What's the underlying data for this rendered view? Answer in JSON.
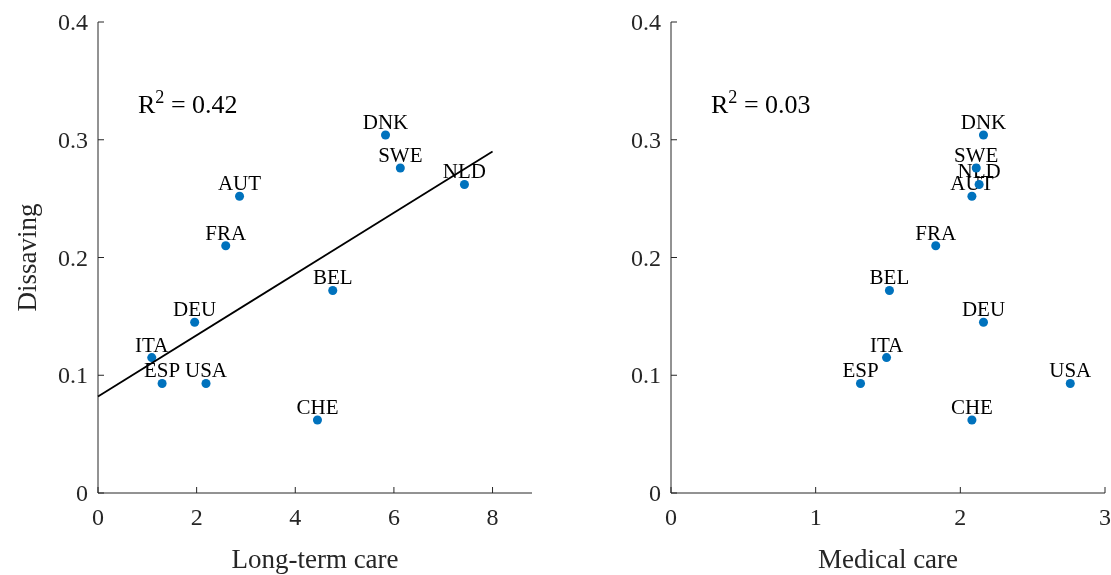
{
  "chart_data": [
    {
      "type": "scatter",
      "xlabel": "Long-term care",
      "ylabel": "Dissaving",
      "xlim": [
        0,
        8.8
      ],
      "xticks": [
        0,
        2,
        4,
        6,
        8
      ],
      "ylim": [
        0,
        0.4
      ],
      "yticks": [
        0,
        0.1,
        0.2,
        0.3,
        0.4
      ],
      "grid": false,
      "marker": "circle",
      "series": [
        {
          "color": "#0072bd",
          "x": [
            5.83,
            6.13,
            7.43,
            2.87,
            2.59,
            4.76,
            1.96,
            1.09,
            1.3,
            2.19,
            4.45
          ],
          "values": [
            0.304,
            0.276,
            0.262,
            0.252,
            0.21,
            0.172,
            0.145,
            0.115,
            0.093,
            0.093,
            0.062
          ]
        },
        {
          "type": "line",
          "marker": "none",
          "color": "#000000",
          "x": [
            0,
            8
          ],
          "values": [
            0.082,
            0.29
          ]
        }
      ],
      "annotations": [
        "R$^{2}$ = 0.42",
        {
          "text": "DNK",
          "x": 5.83,
          "y": 0.304
        },
        {
          "text": "SWE",
          "x": 6.13,
          "y": 0.276
        },
        {
          "text": "NLD",
          "x": 7.43,
          "y": 0.262
        },
        {
          "text": "AUT",
          "x": 2.87,
          "y": 0.252
        },
        {
          "text": "FRA",
          "x": 2.59,
          "y": 0.21
        },
        {
          "text": "BEL",
          "x": 4.76,
          "y": 0.172
        },
        {
          "text": "DEU",
          "x": 1.96,
          "y": 0.145
        },
        {
          "text": "ITA",
          "x": 1.09,
          "y": 0.115
        },
        {
          "text": "ESP",
          "x": 1.3,
          "y": 0.093
        },
        {
          "text": "USA",
          "x": 2.19,
          "y": 0.093
        },
        {
          "text": "CHE",
          "x": 4.45,
          "y": 0.062
        }
      ]
    },
    {
      "type": "scatter",
      "xlabel": "Medical care",
      "xlim": [
        0,
        3
      ],
      "xticks": [
        0,
        1,
        2,
        3
      ],
      "ylim": [
        0,
        0.4
      ],
      "yticks": [
        0,
        0.1,
        0.2,
        0.3,
        0.4
      ],
      "grid": false,
      "marker": "circle",
      "series": [
        {
          "color": "#0072bd",
          "x": [
            2.16,
            2.11,
            2.13,
            2.08,
            1.83,
            1.51,
            2.16,
            1.49,
            1.31,
            2.76,
            2.08
          ],
          "values": [
            0.304,
            0.276,
            0.262,
            0.252,
            0.21,
            0.172,
            0.145,
            0.115,
            0.093,
            0.093,
            0.062
          ]
        }
      ],
      "annotations": [
        "R$^{2}$ = 0.03",
        {
          "text": "DNK",
          "x": 2.16,
          "y": 0.304
        },
        {
          "text": "SWE",
          "x": 2.11,
          "y": 0.276
        },
        {
          "text": "NLD",
          "x": 2.13,
          "y": 0.262
        },
        {
          "text": "AUT",
          "x": 2.08,
          "y": 0.252
        },
        {
          "text": "FRA",
          "x": 1.83,
          "y": 0.21
        },
        {
          "text": "BEL",
          "x": 1.51,
          "y": 0.172
        },
        {
          "text": "DEU",
          "x": 2.16,
          "y": 0.145
        },
        {
          "text": "ITA",
          "x": 1.49,
          "y": 0.115
        },
        {
          "text": "ESP",
          "x": 1.31,
          "y": 0.093
        },
        {
          "text": "USA",
          "x": 2.76,
          "y": 0.093
        },
        {
          "text": "CHE",
          "x": 2.08,
          "y": 0.062
        }
      ]
    }
  ]
}
